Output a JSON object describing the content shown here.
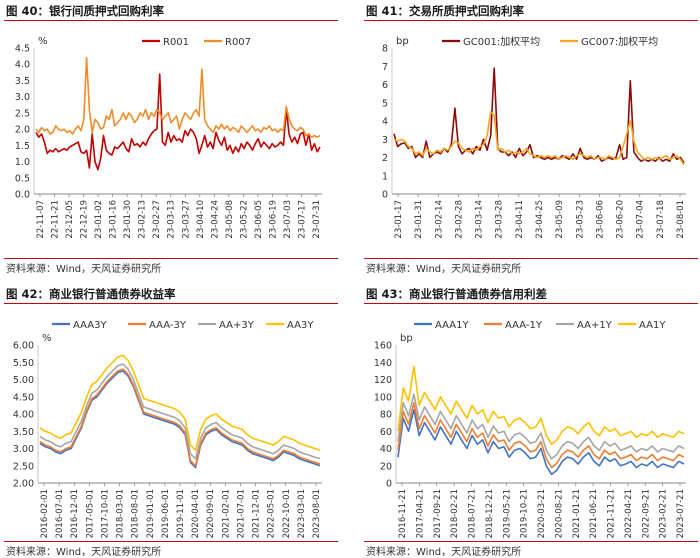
{
  "panels": [
    {
      "title": "图 40：银行间质押式回购利率",
      "source": "资料来源：Wind，天风证券研究所"
    },
    {
      "title": "图 41：交易所质押式回购利率",
      "source": "资料来源：Wind，天风证券研究所"
    },
    {
      "title": "图 42：商业银行普通债券收益率",
      "source": "资料来源：Wind，天风证券研究所"
    },
    {
      "title": "图 43：商业银行普通债券信用利差",
      "source": "资料来源：Wind，天风证券研究所"
    }
  ],
  "chart_data": [
    {
      "type": "line",
      "title": "银行间质押式回购利率",
      "ylabel": "%",
      "ylim": [
        0,
        4.5
      ],
      "yticks": [
        "0.0",
        "0.5",
        "1.0",
        "1.5",
        "2.0",
        "2.5",
        "3.0",
        "3.5",
        "4.0",
        "4.5"
      ],
      "xticks": [
        "22-11-07",
        "22-11-21",
        "22-12-05",
        "22-12-19",
        "23-01-02",
        "23-01-16",
        "23-01-30",
        "23-02-13",
        "23-02-27",
        "23-03-13",
        "23-03-27",
        "23-04-10",
        "23-04-24",
        "23-05-08",
        "23-05-22",
        "23-06-05",
        "23-06-19",
        "23-07-03",
        "23-07-17",
        "23-07-31"
      ],
      "legend": "top-center",
      "series": [
        {
          "name": "R001",
          "color": "#c00000",
          "values": [
            1.9,
            1.75,
            1.85,
            1.6,
            1.25,
            1.35,
            1.3,
            1.4,
            1.3,
            1.35,
            1.4,
            1.35,
            1.45,
            1.5,
            1.55,
            1.6,
            1.3,
            1.25,
            1.35,
            0.8,
            1.85,
            1.0,
            0.75,
            1.1,
            1.8,
            1.35,
            1.25,
            1.2,
            1.45,
            1.4,
            1.5,
            1.6,
            1.4,
            1.3,
            1.7,
            1.5,
            1.55,
            1.45,
            1.6,
            1.5,
            1.7,
            1.85,
            1.95,
            2.0,
            3.7,
            1.6,
            1.5,
            1.9,
            1.6,
            1.8,
            1.65,
            1.7,
            1.6,
            1.95,
            1.8,
            2.0,
            1.9,
            1.7,
            1.25,
            1.5,
            1.8,
            1.45,
            1.6,
            1.4,
            1.9,
            1.65,
            1.5,
            1.75,
            1.35,
            1.5,
            1.25,
            1.45,
            1.3,
            1.55,
            1.4,
            1.6,
            1.5,
            1.35,
            1.55,
            1.7,
            1.45,
            1.6,
            1.5,
            1.4,
            1.55,
            1.45,
            1.5,
            1.6,
            1.5,
            2.6,
            1.85,
            1.6,
            1.75,
            1.55,
            1.85,
            1.9,
            1.5,
            1.85,
            1.35,
            1.55,
            1.3,
            1.45
          ]
        },
        {
          "name": "R007",
          "color": "#f08c28",
          "values": [
            2.0,
            1.9,
            2.05,
            1.95,
            2.0,
            1.85,
            1.9,
            2.1,
            2.0,
            1.95,
            2.0,
            1.9,
            1.95,
            1.85,
            2.0,
            2.1,
            1.95,
            2.3,
            4.2,
            2.6,
            1.9,
            2.3,
            2.2,
            2.0,
            2.05,
            2.4,
            2.3,
            2.6,
            2.1,
            2.2,
            2.3,
            2.5,
            2.3,
            2.5,
            2.4,
            2.2,
            2.3,
            2.5,
            2.4,
            2.6,
            2.3,
            2.5,
            2.4,
            2.6,
            2.5,
            2.3,
            2.4,
            2.5,
            2.2,
            2.3,
            2.4,
            2.0,
            2.3,
            2.5,
            2.4,
            2.3,
            2.5,
            2.6,
            2.4,
            3.85,
            2.3,
            2.1,
            2.0,
            1.9,
            2.1,
            2.0,
            2.15,
            2.0,
            2.1,
            1.95,
            2.05,
            2.0,
            1.9,
            2.1,
            2.0,
            1.9,
            2.0,
            2.1,
            1.95,
            2.0,
            1.9,
            2.05,
            2.0,
            2.1,
            1.95,
            2.0,
            1.9,
            2.0,
            1.95,
            2.7,
            2.3,
            2.1,
            2.0,
            1.95,
            2.05,
            2.0,
            1.8,
            1.85,
            1.75,
            1.8,
            1.75,
            1.8
          ]
        }
      ]
    },
    {
      "type": "line",
      "title": "交易所质押式回购利率",
      "ylabel": "bp",
      "ylim": [
        0,
        8
      ],
      "yticks": [
        "0",
        "1",
        "2",
        "3",
        "4",
        "5",
        "6",
        "7",
        "8"
      ],
      "xticks": [
        "23-01-17",
        "23-01-31",
        "23-02-14",
        "23-02-28",
        "23-03-14",
        "23-03-28",
        "23-04-11",
        "23-04-25",
        "23-05-09",
        "23-05-23",
        "23-06-06",
        "23-06-20",
        "23-07-04",
        "23-07-18",
        "23-08-01"
      ],
      "legend": "top-center",
      "series": [
        {
          "name": "GC001:加权平均",
          "color": "#8b0a0a",
          "values": [
            3.3,
            2.6,
            2.75,
            2.8,
            2.5,
            2.6,
            2.0,
            2.2,
            2.0,
            2.9,
            2.0,
            2.2,
            2.3,
            2.2,
            2.5,
            2.3,
            2.7,
            4.7,
            2.6,
            2.2,
            2.4,
            2.5,
            2.2,
            2.6,
            2.4,
            3.0,
            2.4,
            3.2,
            6.9,
            2.5,
            2.3,
            2.3,
            2.1,
            2.3,
            2.0,
            2.5,
            2.1,
            2.3,
            2.7,
            2.0,
            2.1,
            2.0,
            1.9,
            2.0,
            1.9,
            2.0,
            1.9,
            2.1,
            2.0,
            1.9,
            2.2,
            1.9,
            2.5,
            2.0,
            1.9,
            2.0,
            1.9,
            2.1,
            1.8,
            1.9,
            2.0,
            1.9,
            2.0,
            2.7,
            1.9,
            2.0,
            6.2,
            2.3,
            2.0,
            1.8,
            1.9,
            1.8,
            1.9,
            1.8,
            2.0,
            1.8,
            1.9,
            1.8,
            2.2,
            1.9,
            2.0,
            1.7
          ]
        },
        {
          "name": "GC007:加权平均",
          "color": "#f5a623",
          "values": [
            3.0,
            2.9,
            3.0,
            2.9,
            2.6,
            2.5,
            2.2,
            2.3,
            2.1,
            2.5,
            2.3,
            2.2,
            2.4,
            2.3,
            2.5,
            2.4,
            2.6,
            2.9,
            2.8,
            2.5,
            2.4,
            2.3,
            2.5,
            2.4,
            2.6,
            2.7,
            3.2,
            4.5,
            4.3,
            2.4,
            2.5,
            2.3,
            2.4,
            2.2,
            2.3,
            2.2,
            2.3,
            2.5,
            2.2,
            2.1,
            2.0,
            2.1,
            2.0,
            2.1,
            2.0,
            2.1,
            1.9,
            2.0,
            2.1,
            2.0,
            1.9,
            2.1,
            2.2,
            2.1,
            2.0,
            2.1,
            1.9,
            2.0,
            2.0,
            1.9,
            2.1,
            2.0,
            1.9,
            2.0,
            2.6,
            3.3,
            4.0,
            2.9,
            2.3,
            2.1,
            1.9,
            2.0,
            1.9,
            2.0,
            1.9,
            2.0,
            2.1,
            1.9,
            2.0,
            2.1,
            1.9,
            1.6
          ]
        }
      ]
    },
    {
      "type": "line",
      "title": "商业银行普通债券收益率",
      "ylabel": "%",
      "ylim": [
        2.0,
        6.0
      ],
      "yticks": [
        "2.00",
        "2.50",
        "3.00",
        "3.50",
        "4.00",
        "4.50",
        "5.00",
        "5.50",
        "6.00"
      ],
      "xticks": [
        "2016-02-01",
        "2016-07-01",
        "2016-12-01",
        "2017-05-01",
        "2017-10-01",
        "2018-03-01",
        "2018-08-01",
        "2019-01-01",
        "2019-06-01",
        "2019-11-01",
        "2020-04-01",
        "2020-09-01",
        "2021-02-01",
        "2021-07-01",
        "2021-12-01",
        "2022-05-01",
        "2022-10-01",
        "2023-03-01",
        "2023-08-01"
      ],
      "legend": "top-center",
      "series": [
        {
          "name": "AAA3Y",
          "color": "#4472c4",
          "values": [
            3.15,
            3.05,
            3.0,
            2.9,
            2.85,
            2.95,
            3.0,
            3.3,
            3.6,
            4.05,
            4.4,
            4.5,
            4.7,
            4.9,
            5.05,
            5.2,
            5.25,
            5.1,
            4.8,
            4.4,
            4.0,
            3.95,
            3.9,
            3.85,
            3.8,
            3.75,
            3.7,
            3.6,
            3.4,
            2.6,
            2.45,
            3.1,
            3.4,
            3.5,
            3.55,
            3.4,
            3.3,
            3.2,
            3.15,
            3.1,
            2.95,
            2.85,
            2.8,
            2.75,
            2.7,
            2.65,
            2.75,
            2.9,
            2.85,
            2.8,
            2.7,
            2.65,
            2.6,
            2.55,
            2.5
          ]
        },
        {
          "name": "AAA-3Y",
          "color": "#ed7d31",
          "values": [
            3.2,
            3.1,
            3.05,
            2.95,
            2.9,
            3.0,
            3.05,
            3.35,
            3.65,
            4.1,
            4.45,
            4.55,
            4.75,
            4.95,
            5.1,
            5.25,
            5.3,
            5.15,
            4.85,
            4.45,
            4.05,
            4.0,
            3.95,
            3.9,
            3.85,
            3.8,
            3.75,
            3.65,
            3.45,
            2.65,
            2.5,
            3.15,
            3.45,
            3.55,
            3.6,
            3.45,
            3.35,
            3.25,
            3.2,
            3.15,
            3.0,
            2.9,
            2.85,
            2.8,
            2.75,
            2.7,
            2.8,
            2.95,
            2.9,
            2.85,
            2.75,
            2.7,
            2.65,
            2.6,
            2.55
          ]
        },
        {
          "name": "AA+3Y",
          "color": "#a5a5a5",
          "values": [
            3.35,
            3.25,
            3.2,
            3.1,
            3.05,
            3.15,
            3.2,
            3.5,
            3.8,
            4.25,
            4.6,
            4.7,
            4.9,
            5.1,
            5.25,
            5.4,
            5.45,
            5.3,
            5.0,
            4.6,
            4.2,
            4.15,
            4.1,
            4.05,
            4.0,
            3.95,
            3.9,
            3.8,
            3.6,
            2.85,
            2.7,
            3.3,
            3.6,
            3.7,
            3.75,
            3.6,
            3.5,
            3.4,
            3.35,
            3.3,
            3.15,
            3.05,
            3.0,
            2.95,
            2.9,
            2.85,
            2.95,
            3.1,
            3.05,
            3.0,
            2.9,
            2.85,
            2.8,
            2.75,
            2.7
          ]
        },
        {
          "name": "AA3Y",
          "color": "#ffc000",
          "values": [
            3.6,
            3.5,
            3.45,
            3.35,
            3.3,
            3.4,
            3.45,
            3.75,
            4.05,
            4.5,
            4.85,
            4.95,
            5.15,
            5.35,
            5.5,
            5.65,
            5.7,
            5.55,
            5.25,
            4.85,
            4.45,
            4.4,
            4.35,
            4.3,
            4.25,
            4.2,
            4.15,
            4.05,
            3.85,
            3.1,
            2.95,
            3.55,
            3.85,
            3.95,
            4.0,
            3.85,
            3.75,
            3.65,
            3.6,
            3.55,
            3.4,
            3.3,
            3.25,
            3.2,
            3.15,
            3.1,
            3.2,
            3.35,
            3.3,
            3.25,
            3.15,
            3.1,
            3.05,
            3.0,
            2.95
          ]
        }
      ]
    },
    {
      "type": "line",
      "title": "商业银行普通债券信用利差",
      "ylabel": "bp",
      "ylim": [
        0,
        160
      ],
      "yticks": [
        "0",
        "20",
        "40",
        "60",
        "80",
        "100",
        "120",
        "140",
        "160"
      ],
      "xticks": [
        "2016-11-21",
        "2017-04-21",
        "2017-09-21",
        "2018-02-21",
        "2018-07-21",
        "2018-12-21",
        "2019-05-21",
        "2019-10-21",
        "2020-03-21",
        "2020-08-21",
        "2021-01-21",
        "2021-06-21",
        "2021-11-21",
        "2022-04-21",
        "2022-09-21",
        "2023-02-21",
        "2023-07-21"
      ],
      "legend": "top-center",
      "series": [
        {
          "name": "AAA1Y",
          "color": "#4472c4",
          "values": [
            30,
            75,
            60,
            85,
            55,
            70,
            60,
            50,
            65,
            55,
            45,
            60,
            50,
            40,
            55,
            45,
            50,
            35,
            48,
            40,
            42,
            30,
            38,
            40,
            35,
            28,
            30,
            40,
            20,
            10,
            15,
            25,
            30,
            28,
            22,
            30,
            35,
            25,
            20,
            30,
            25,
            28,
            20,
            22,
            25,
            18,
            22,
            20,
            25,
            18,
            22,
            20,
            18,
            25,
            22
          ]
        },
        {
          "name": "AAA-1Y",
          "color": "#ed7d31",
          "values": [
            38,
            83,
            68,
            93,
            63,
            78,
            68,
            58,
            73,
            63,
            53,
            68,
            58,
            48,
            63,
            53,
            58,
            43,
            56,
            48,
            50,
            38,
            46,
            48,
            43,
            36,
            38,
            48,
            28,
            18,
            23,
            33,
            38,
            36,
            30,
            38,
            43,
            33,
            28,
            38,
            33,
            36,
            28,
            30,
            33,
            26,
            30,
            28,
            33,
            26,
            30,
            28,
            26,
            33,
            30
          ]
        },
        {
          "name": "AA+1Y",
          "color": "#a5a5a5",
          "values": [
            48,
            93,
            78,
            103,
            73,
            88,
            78,
            68,
            83,
            73,
            63,
            78,
            68,
            58,
            73,
            63,
            68,
            53,
            66,
            58,
            60,
            48,
            56,
            58,
            53,
            46,
            48,
            58,
            38,
            28,
            33,
            43,
            48,
            46,
            40,
            48,
            53,
            43,
            38,
            48,
            43,
            46,
            38,
            40,
            43,
            36,
            40,
            38,
            43,
            36,
            40,
            38,
            36,
            43,
            40
          ]
        },
        {
          "name": "AA1Y",
          "color": "#ffc000",
          "values": [
            60,
            110,
            95,
            135,
            90,
            105,
            95,
            85,
            100,
            90,
            80,
            95,
            85,
            75,
            90,
            80,
            85,
            70,
            83,
            75,
            77,
            65,
            73,
            75,
            70,
            63,
            65,
            75,
            55,
            45,
            50,
            60,
            65,
            63,
            57,
            65,
            70,
            60,
            55,
            65,
            60,
            63,
            55,
            57,
            60,
            53,
            57,
            55,
            60,
            53,
            57,
            55,
            53,
            60,
            57
          ]
        }
      ]
    }
  ]
}
